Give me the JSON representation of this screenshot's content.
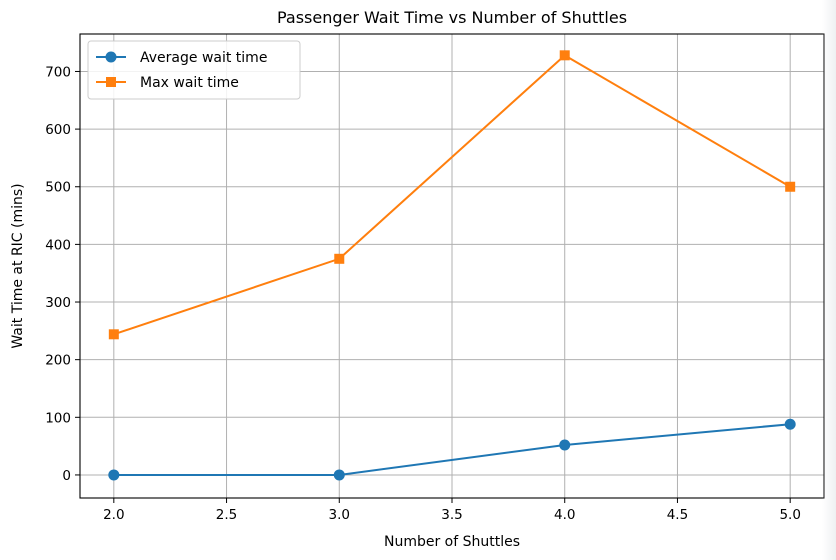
{
  "chart_data": {
    "type": "line",
    "title": "Passenger Wait Time  vs Number of Shuttles",
    "xlabel": "Number of Shuttles",
    "ylabel": "Wait Time at RIC (mins)",
    "x": [
      2.0,
      3.0,
      4.0,
      5.0
    ],
    "xlim": [
      1.85,
      5.15
    ],
    "ylim": [
      -40,
      765
    ],
    "xticks": [
      "2.0",
      "2.5",
      "3.0",
      "3.5",
      "4.0",
      "4.5",
      "5.0"
    ],
    "yticks": [
      "0",
      "100",
      "200",
      "300",
      "400",
      "500",
      "600",
      "700"
    ],
    "grid": true,
    "legend_position": "upper left",
    "series": [
      {
        "name": "Average wait time",
        "values": [
          0,
          0,
          52,
          88
        ],
        "color": "#1f77b4",
        "marker": "circle"
      },
      {
        "name": "Max wait time",
        "values": [
          244,
          375,
          728,
          500
        ],
        "color": "#ff7f0e",
        "marker": "square"
      }
    ]
  }
}
